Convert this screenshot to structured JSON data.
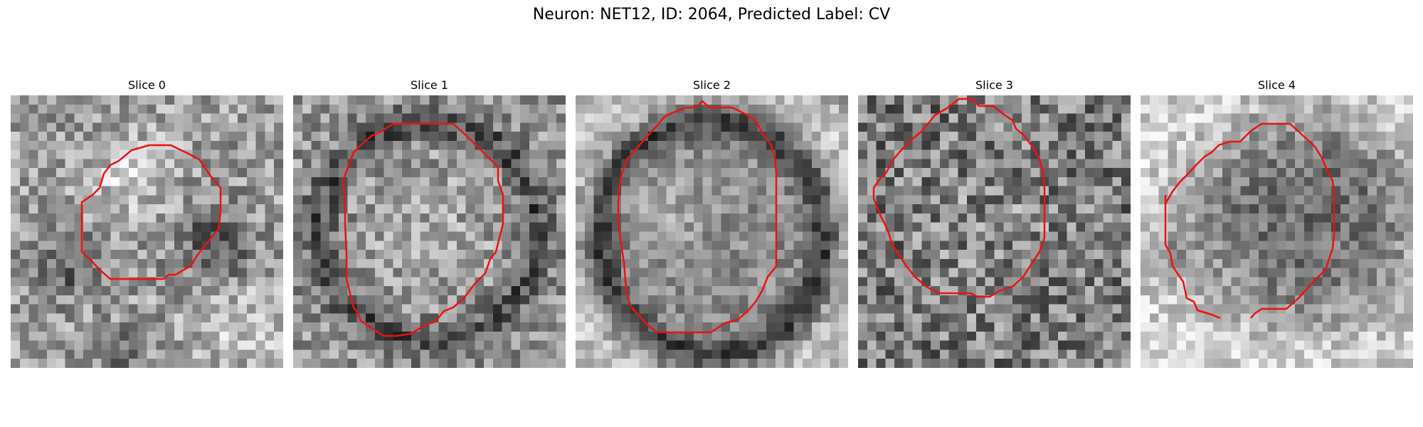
{
  "figure": {
    "title": "Neuron: NET12, ID: 2064, Predicted Label: CV",
    "contour_color": "#ee1111",
    "colormap": "grayscale",
    "grid_size": 30
  },
  "slices": [
    {
      "label": "Slice 0"
    },
    {
      "label": "Slice 1"
    },
    {
      "label": "Slice 2"
    },
    {
      "label": "Slice 3"
    },
    {
      "label": "Slice 4"
    }
  ]
}
